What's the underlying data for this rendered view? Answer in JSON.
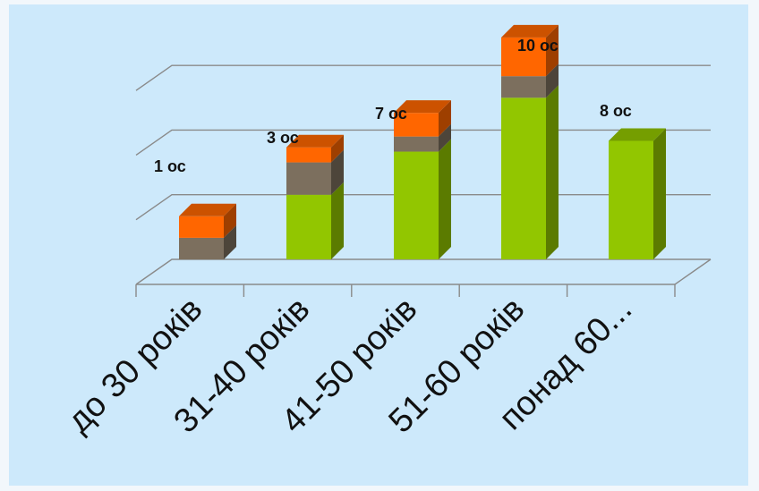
{
  "chart_data": {
    "type": "bar",
    "stacked": true,
    "three_d": true,
    "categories": [
      "до 30 років",
      "31-40 років",
      "41-50 років",
      "51-60 років",
      "понад 60..."
    ],
    "series": [
      {
        "values": [
          0,
          3,
          5,
          7.5,
          5.5
        ],
        "color": "#92c600"
      },
      {
        "values": [
          1,
          1.5,
          0.7,
          1,
          0
        ],
        "color": "#7c6f5e"
      },
      {
        "values": [
          1,
          0.7,
          1.1,
          1.8,
          0
        ],
        "color": "#ff6600"
      }
    ],
    "data_labels": [
      "1 ос",
      "3 ос",
      "7 ос",
      "10 ос",
      "8 ос"
    ],
    "ylim": [
      0,
      10.5
    ],
    "grid": true,
    "legend": "none"
  }
}
